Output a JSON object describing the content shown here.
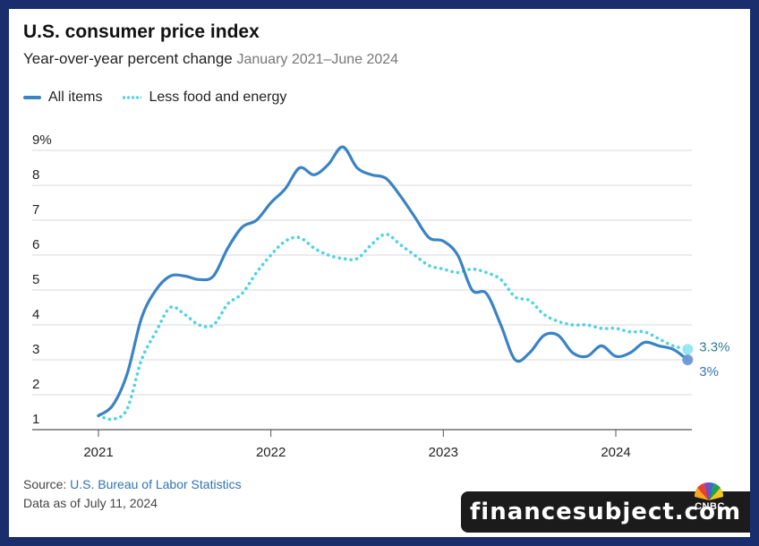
{
  "header": {
    "title": "U.S. consumer price index",
    "subtitle": "Year-over-year percent change",
    "date_range": "January 2021–June 2024"
  },
  "chart_data": {
    "type": "line",
    "title": "U.S. consumer price index",
    "subtitle": "Year-over-year percent change January 2021–June 2024",
    "xlabel": "",
    "ylabel": "",
    "y_ticks": [
      "1",
      "2",
      "3",
      "4",
      "5",
      "6",
      "7",
      "8",
      "9%"
    ],
    "x_ticks": [
      "2021",
      "2022",
      "2023",
      "2024"
    ],
    "ylim": [
      1,
      9
    ],
    "grid": "horizontal",
    "legend_position": "top-left",
    "series": [
      {
        "name": "All items",
        "style": "solid",
        "color": "#3a83c4",
        "end_label": "3%",
        "points": [
          [
            "2021-01",
            1.4
          ],
          [
            "2021-02",
            1.7
          ],
          [
            "2021-03",
            2.6
          ],
          [
            "2021-04",
            4.2
          ],
          [
            "2021-05",
            5.0
          ],
          [
            "2021-06",
            5.4
          ],
          [
            "2021-07",
            5.4
          ],
          [
            "2021-08",
            5.3
          ],
          [
            "2021-09",
            5.4
          ],
          [
            "2021-10",
            6.2
          ],
          [
            "2021-11",
            6.8
          ],
          [
            "2021-12",
            7.0
          ],
          [
            "2022-01",
            7.5
          ],
          [
            "2022-02",
            7.9
          ],
          [
            "2022-03",
            8.5
          ],
          [
            "2022-04",
            8.3
          ],
          [
            "2022-05",
            8.6
          ],
          [
            "2022-06",
            9.1
          ],
          [
            "2022-07",
            8.5
          ],
          [
            "2022-08",
            8.3
          ],
          [
            "2022-09",
            8.2
          ],
          [
            "2022-10",
            7.7
          ],
          [
            "2022-11",
            7.1
          ],
          [
            "2022-12",
            6.5
          ],
          [
            "2023-01",
            6.4
          ],
          [
            "2023-02",
            6.0
          ],
          [
            "2023-03",
            5.0
          ],
          [
            "2023-04",
            4.9
          ],
          [
            "2023-05",
            4.0
          ],
          [
            "2023-06",
            3.0
          ],
          [
            "2023-07",
            3.2
          ],
          [
            "2023-08",
            3.7
          ],
          [
            "2023-09",
            3.7
          ],
          [
            "2023-10",
            3.2
          ],
          [
            "2023-11",
            3.1
          ],
          [
            "2023-12",
            3.4
          ],
          [
            "2024-01",
            3.1
          ],
          [
            "2024-02",
            3.2
          ],
          [
            "2024-03",
            3.5
          ],
          [
            "2024-04",
            3.4
          ],
          [
            "2024-05",
            3.3
          ],
          [
            "2024-06",
            3.0
          ]
        ]
      },
      {
        "name": "Less food and energy",
        "style": "dotted",
        "color": "#4fd3e2",
        "end_label": "3.3%",
        "points": [
          [
            "2021-01",
            1.4
          ],
          [
            "2021-02",
            1.3
          ],
          [
            "2021-03",
            1.6
          ],
          [
            "2021-04",
            3.0
          ],
          [
            "2021-05",
            3.8
          ],
          [
            "2021-06",
            4.5
          ],
          [
            "2021-07",
            4.3
          ],
          [
            "2021-08",
            4.0
          ],
          [
            "2021-09",
            4.0
          ],
          [
            "2021-10",
            4.6
          ],
          [
            "2021-11",
            4.9
          ],
          [
            "2021-12",
            5.5
          ],
          [
            "2022-01",
            6.0
          ],
          [
            "2022-02",
            6.4
          ],
          [
            "2022-03",
            6.5
          ],
          [
            "2022-04",
            6.2
          ],
          [
            "2022-05",
            6.0
          ],
          [
            "2022-06",
            5.9
          ],
          [
            "2022-07",
            5.9
          ],
          [
            "2022-08",
            6.3
          ],
          [
            "2022-09",
            6.6
          ],
          [
            "2022-10",
            6.3
          ],
          [
            "2022-11",
            6.0
          ],
          [
            "2022-12",
            5.7
          ],
          [
            "2023-01",
            5.6
          ],
          [
            "2023-02",
            5.5
          ],
          [
            "2023-03",
            5.6
          ],
          [
            "2023-04",
            5.5
          ],
          [
            "2023-05",
            5.3
          ],
          [
            "2023-06",
            4.8
          ],
          [
            "2023-07",
            4.7
          ],
          [
            "2023-08",
            4.3
          ],
          [
            "2023-09",
            4.1
          ],
          [
            "2023-10",
            4.0
          ],
          [
            "2023-11",
            4.0
          ],
          [
            "2023-12",
            3.9
          ],
          [
            "2024-01",
            3.9
          ],
          [
            "2024-02",
            3.8
          ],
          [
            "2024-03",
            3.8
          ],
          [
            "2024-04",
            3.6
          ],
          [
            "2024-05",
            3.4
          ],
          [
            "2024-06",
            3.3
          ]
        ]
      }
    ]
  },
  "footer": {
    "source_prefix": "Source: ",
    "source_link": "U.S. Bureau of Labor Statistics",
    "data_as_of": "Data as of July 11, 2024"
  },
  "branding": {
    "logo_text": "CNBC",
    "watermark": "financesubject.com"
  }
}
